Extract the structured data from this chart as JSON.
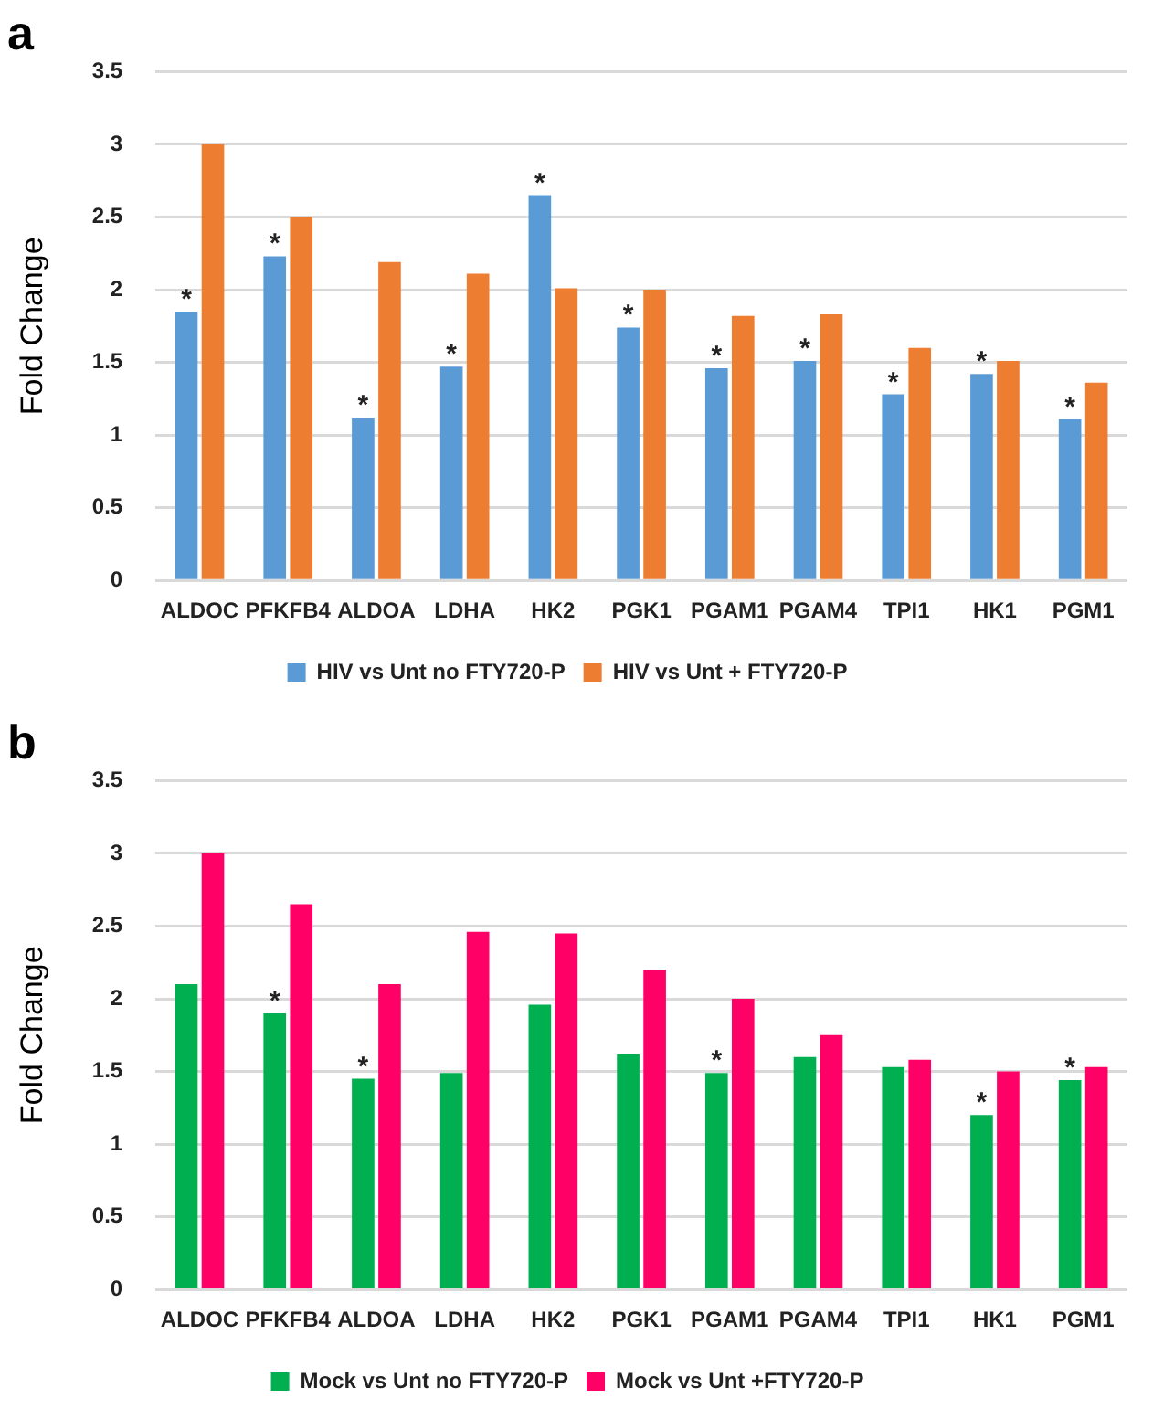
{
  "chart_data": [
    {
      "type": "bar",
      "title": "a",
      "ylabel": "Fold Change",
      "categories": [
        "ALDOC",
        "PFKFB4",
        "ALDOA",
        "LDHA",
        "HK2",
        "PGK1",
        "PGAM1",
        "PGAM4",
        "TPI1",
        "HK1",
        "PGM1"
      ],
      "series": [
        {
          "name": "HIV vs Unt no FTY720-P",
          "color": "#5b9bd5",
          "values": [
            1.85,
            2.23,
            1.12,
            1.47,
            2.65,
            1.74,
            1.46,
            1.51,
            1.28,
            1.42,
            1.11
          ]
        },
        {
          "name": "HIV vs Unt + FTY720-P",
          "color": "#ed7d31",
          "values": [
            3.0,
            2.5,
            2.19,
            2.11,
            2.01,
            2.0,
            1.82,
            1.83,
            1.6,
            1.51,
            1.36
          ]
        }
      ],
      "ylim": [
        0,
        3.5
      ],
      "yticks": [
        0,
        0.5,
        1,
        1.5,
        2,
        2.5,
        3,
        3.5
      ],
      "grid": "y",
      "legend": "bottom",
      "annotations": [
        {
          "text": "*",
          "x": "ALDOC",
          "y": 1.85
        },
        {
          "text": "*",
          "x": "PFKFB4",
          "y": 2.23
        },
        {
          "text": "*",
          "x": "ALDOA",
          "y": 1.12
        },
        {
          "text": "*",
          "x": "LDHA",
          "y": 1.47
        },
        {
          "text": "*",
          "x": "HK2",
          "y": 2.65
        },
        {
          "text": "*",
          "x": "PGK1",
          "y": 1.74
        },
        {
          "text": "*",
          "x": "PGAM1",
          "y": 1.46
        },
        {
          "text": "*",
          "x": "PGAM4",
          "y": 1.51
        },
        {
          "text": "*",
          "x": "TPI1",
          "y": 1.28
        },
        {
          "text": "*",
          "x": "HK1",
          "y": 1.42
        },
        {
          "text": "*",
          "x": "PGM1",
          "y": 1.11
        }
      ]
    },
    {
      "type": "bar",
      "title": "b",
      "ylabel": "Fold Change",
      "categories": [
        "ALDOC",
        "PFKFB4",
        "ALDOA",
        "LDHA",
        "HK2",
        "PGK1",
        "PGAM1",
        "PGAM4",
        "TPI1",
        "HK1",
        "PGM1"
      ],
      "series": [
        {
          "name": "Mock vs Unt no FTY720-P",
          "color": "#00b050",
          "values": [
            2.1,
            1.9,
            1.45,
            1.49,
            1.96,
            1.62,
            1.49,
            1.6,
            1.53,
            1.2,
            1.44
          ]
        },
        {
          "name": "Mock vs Unt +FTY720-P",
          "color": "#ff0066",
          "values": [
            3.0,
            2.65,
            2.1,
            2.46,
            2.45,
            2.2,
            2.0,
            1.75,
            1.58,
            1.5,
            1.53
          ]
        }
      ],
      "ylim": [
        0,
        3.5
      ],
      "yticks": [
        0,
        0.5,
        1,
        1.5,
        2,
        2.5,
        3,
        3.5
      ],
      "grid": "y",
      "legend": "bottom",
      "annotations": [
        {
          "text": "*",
          "x": "PFKFB4",
          "y": 1.9
        },
        {
          "text": "*",
          "x": "ALDOA",
          "y": 1.45
        },
        {
          "text": "*",
          "x": "PGAM1",
          "y": 1.49
        },
        {
          "text": "*",
          "x": "HK1",
          "y": 1.2
        },
        {
          "text": "*",
          "x": "PGM1",
          "y": 1.44
        }
      ]
    }
  ]
}
